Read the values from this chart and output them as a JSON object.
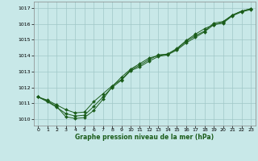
{
  "bg_color": "#c8e8e8",
  "grid_color": "#a0c8c8",
  "line_color": "#1a5c1a",
  "marker_color": "#1a5c1a",
  "xlabel": "Graphe pression niveau de la mer (hPa)",
  "ylim": [
    1009.6,
    1017.4
  ],
  "xlim": [
    -0.5,
    23.5
  ],
  "yticks": [
    1010,
    1011,
    1012,
    1013,
    1014,
    1015,
    1016,
    1017
  ],
  "xticks": [
    0,
    1,
    2,
    3,
    4,
    5,
    6,
    7,
    8,
    9,
    10,
    11,
    12,
    13,
    14,
    15,
    16,
    17,
    18,
    19,
    20,
    21,
    22,
    23
  ],
  "line1": [
    1011.4,
    1011.2,
    1010.9,
    1010.6,
    1010.4,
    1010.45,
    1011.1,
    1011.6,
    1012.1,
    1012.5,
    1013.1,
    1013.4,
    1013.75,
    1014.05,
    1014.1,
    1014.4,
    1014.9,
    1015.25,
    1015.55,
    1016.05,
    1016.15,
    1016.55,
    1016.8,
    1016.95
  ],
  "line2": [
    1011.4,
    1011.15,
    1010.8,
    1010.15,
    1010.05,
    1010.1,
    1010.55,
    1011.25,
    1012.05,
    1012.65,
    1013.15,
    1013.5,
    1013.85,
    1014.0,
    1014.1,
    1014.45,
    1014.95,
    1015.35,
    1015.7,
    1015.95,
    1016.1,
    1016.55,
    1016.8,
    1016.95
  ],
  "line3": [
    1011.4,
    1011.1,
    1010.75,
    1010.35,
    1010.2,
    1010.25,
    1010.8,
    1011.4,
    1012.0,
    1012.45,
    1013.05,
    1013.3,
    1013.65,
    1013.95,
    1014.05,
    1014.35,
    1014.8,
    1015.15,
    1015.5,
    1015.95,
    1016.05,
    1016.5,
    1016.75,
    1016.9
  ]
}
